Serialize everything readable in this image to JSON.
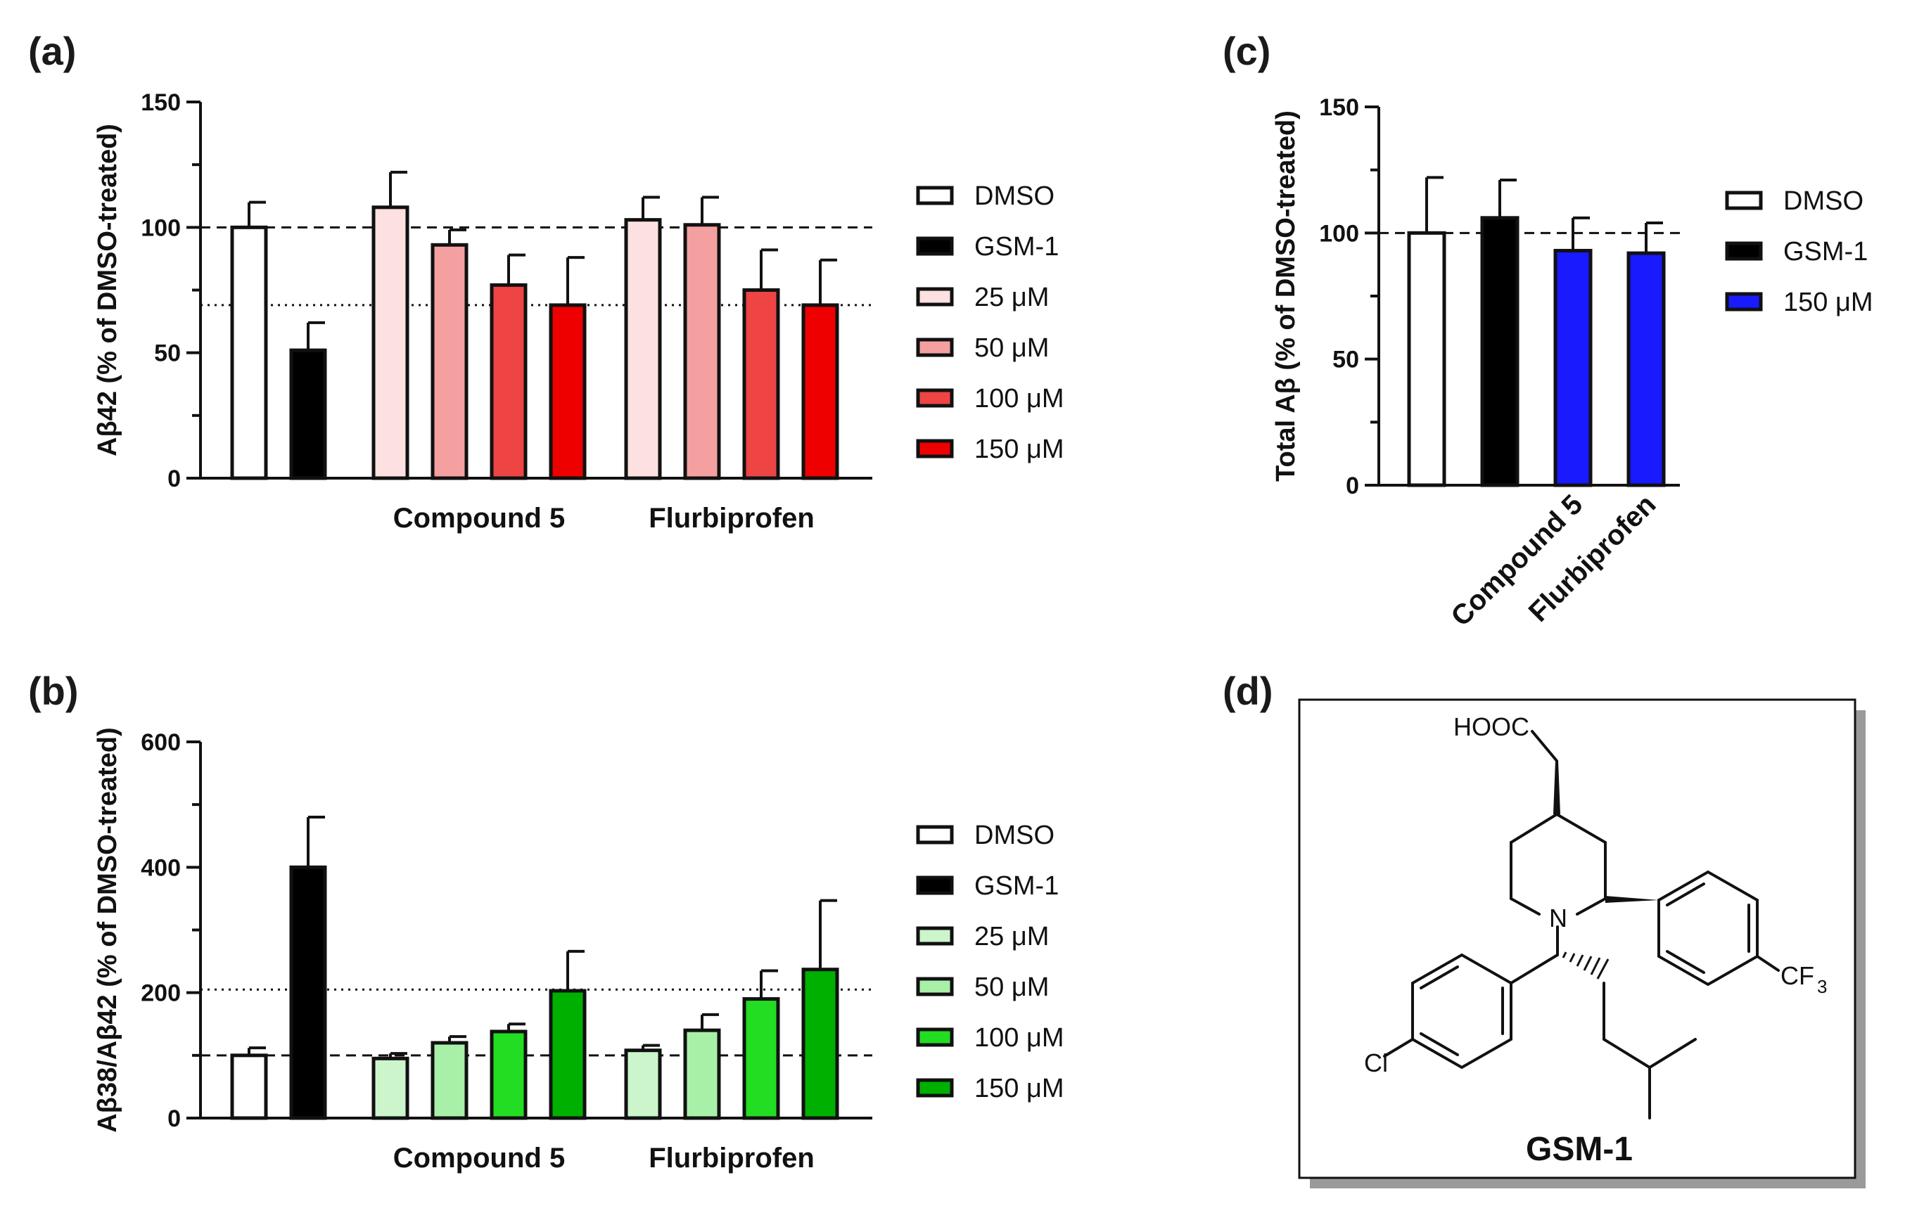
{
  "panels": {
    "a": {
      "letter": "(a)"
    },
    "b": {
      "letter": "(b)"
    },
    "c": {
      "letter": "(c)"
    },
    "d": {
      "letter": "(d)"
    }
  },
  "structure": {
    "name": "GSM-1",
    "atoms": {
      "acid": "HOOC",
      "n": "N",
      "cl": "Cl",
      "cf3": "CF",
      "cf3_sub": "3"
    }
  },
  "chart_data": [
    {
      "id": "a",
      "type": "bar",
      "ylabel": "Aβ42 (% of DMSO-treated)",
      "ylim": [
        0,
        150
      ],
      "yticks": [
        0,
        50,
        100,
        150
      ],
      "ref_dashed": 100,
      "ref_dotted": 69,
      "group_labels": [
        {
          "label": "Compound 5",
          "from": 2,
          "to": 5
        },
        {
          "label": "Flurbiprofen",
          "from": 6,
          "to": 9
        }
      ],
      "legend": [
        {
          "label": "DMSO",
          "color": "#ffffff"
        },
        {
          "label": "GSM-1",
          "color": "#000000"
        },
        {
          "label": "25 μM",
          "color": "#fde0e0"
        },
        {
          "label": "50 μM",
          "color": "#f4a0a0"
        },
        {
          "label": "100 μM",
          "color": "#ee4444"
        },
        {
          "label": "150 μM",
          "color": "#ee0000"
        }
      ],
      "bars": [
        {
          "series": "DMSO",
          "value": 100,
          "error": 10
        },
        {
          "series": "GSM-1",
          "value": 51,
          "error": 11
        },
        {
          "series": "25 μM",
          "group": "Compound 5",
          "value": 108,
          "error": 14
        },
        {
          "series": "50 μM",
          "group": "Compound 5",
          "value": 93,
          "error": 6
        },
        {
          "series": "100 μM",
          "group": "Compound 5",
          "value": 77,
          "error": 12
        },
        {
          "series": "150 μM",
          "group": "Compound 5",
          "value": 69,
          "error": 19
        },
        {
          "series": "25 μM",
          "group": "Flurbiprofen",
          "value": 103,
          "error": 9
        },
        {
          "series": "50 μM",
          "group": "Flurbiprofen",
          "value": 101,
          "error": 11
        },
        {
          "series": "100 μM",
          "group": "Flurbiprofen",
          "value": 75,
          "error": 16
        },
        {
          "series": "150 μM",
          "group": "Flurbiprofen",
          "value": 69,
          "error": 18
        }
      ]
    },
    {
      "id": "b",
      "type": "bar",
      "ylabel": "Aβ38/Aβ42 (% of DMSO-treated)",
      "ylim": [
        0,
        600
      ],
      "yticks": [
        0,
        200,
        400,
        600
      ],
      "ref_dashed": 100,
      "ref_dotted": 205,
      "group_labels": [
        {
          "label": "Compound 5",
          "from": 2,
          "to": 5
        },
        {
          "label": "Flurbiprofen",
          "from": 6,
          "to": 9
        }
      ],
      "legend": [
        {
          "label": "DMSO",
          "color": "#ffffff"
        },
        {
          "label": "GSM-1",
          "color": "#000000"
        },
        {
          "label": "25 μM",
          "color": "#ccf5cc"
        },
        {
          "label": "50 μM",
          "color": "#a8f0a8"
        },
        {
          "label": "100 μM",
          "color": "#22dd22"
        },
        {
          "label": "150 μM",
          "color": "#00b000"
        }
      ],
      "bars": [
        {
          "series": "DMSO",
          "value": 100,
          "error": 12
        },
        {
          "series": "GSM-1",
          "value": 400,
          "error": 80
        },
        {
          "series": "25 μM",
          "group": "Compound 5",
          "value": 95,
          "error": 8
        },
        {
          "series": "50 μM",
          "group": "Compound 5",
          "value": 120,
          "error": 10
        },
        {
          "series": "100 μM",
          "group": "Compound 5",
          "value": 138,
          "error": 12
        },
        {
          "series": "150 μM",
          "group": "Compound 5",
          "value": 203,
          "error": 63
        },
        {
          "series": "25 μM",
          "group": "Flurbiprofen",
          "value": 108,
          "error": 8
        },
        {
          "series": "50 μM",
          "group": "Flurbiprofen",
          "value": 140,
          "error": 25
        },
        {
          "series": "100 μM",
          "group": "Flurbiprofen",
          "value": 190,
          "error": 45
        },
        {
          "series": "150 μM",
          "group": "Flurbiprofen",
          "value": 237,
          "error": 110
        }
      ]
    },
    {
      "id": "c",
      "type": "bar",
      "ylabel": "Total Aβ (% of DMSO-treated)",
      "ylim": [
        0,
        150
      ],
      "yticks": [
        0,
        50,
        100,
        150
      ],
      "ref_dashed": 100,
      "categories": [
        "",
        "",
        "Compound 5",
        "Flurbiprofen"
      ],
      "legend": [
        {
          "label": "DMSO",
          "color": "#ffffff"
        },
        {
          "label": "GSM-1",
          "color": "#000000"
        },
        {
          "label": "150 μM",
          "color": "#1a1aff"
        }
      ],
      "bars": [
        {
          "series": "DMSO",
          "value": 100,
          "error": 22
        },
        {
          "series": "GSM-1",
          "value": 106,
          "error": 15
        },
        {
          "series": "150 μM",
          "group": "Compound 5",
          "value": 93,
          "error": 13
        },
        {
          "series": "150 μM",
          "group": "Flurbiprofen",
          "value": 92,
          "error": 12
        }
      ]
    }
  ]
}
